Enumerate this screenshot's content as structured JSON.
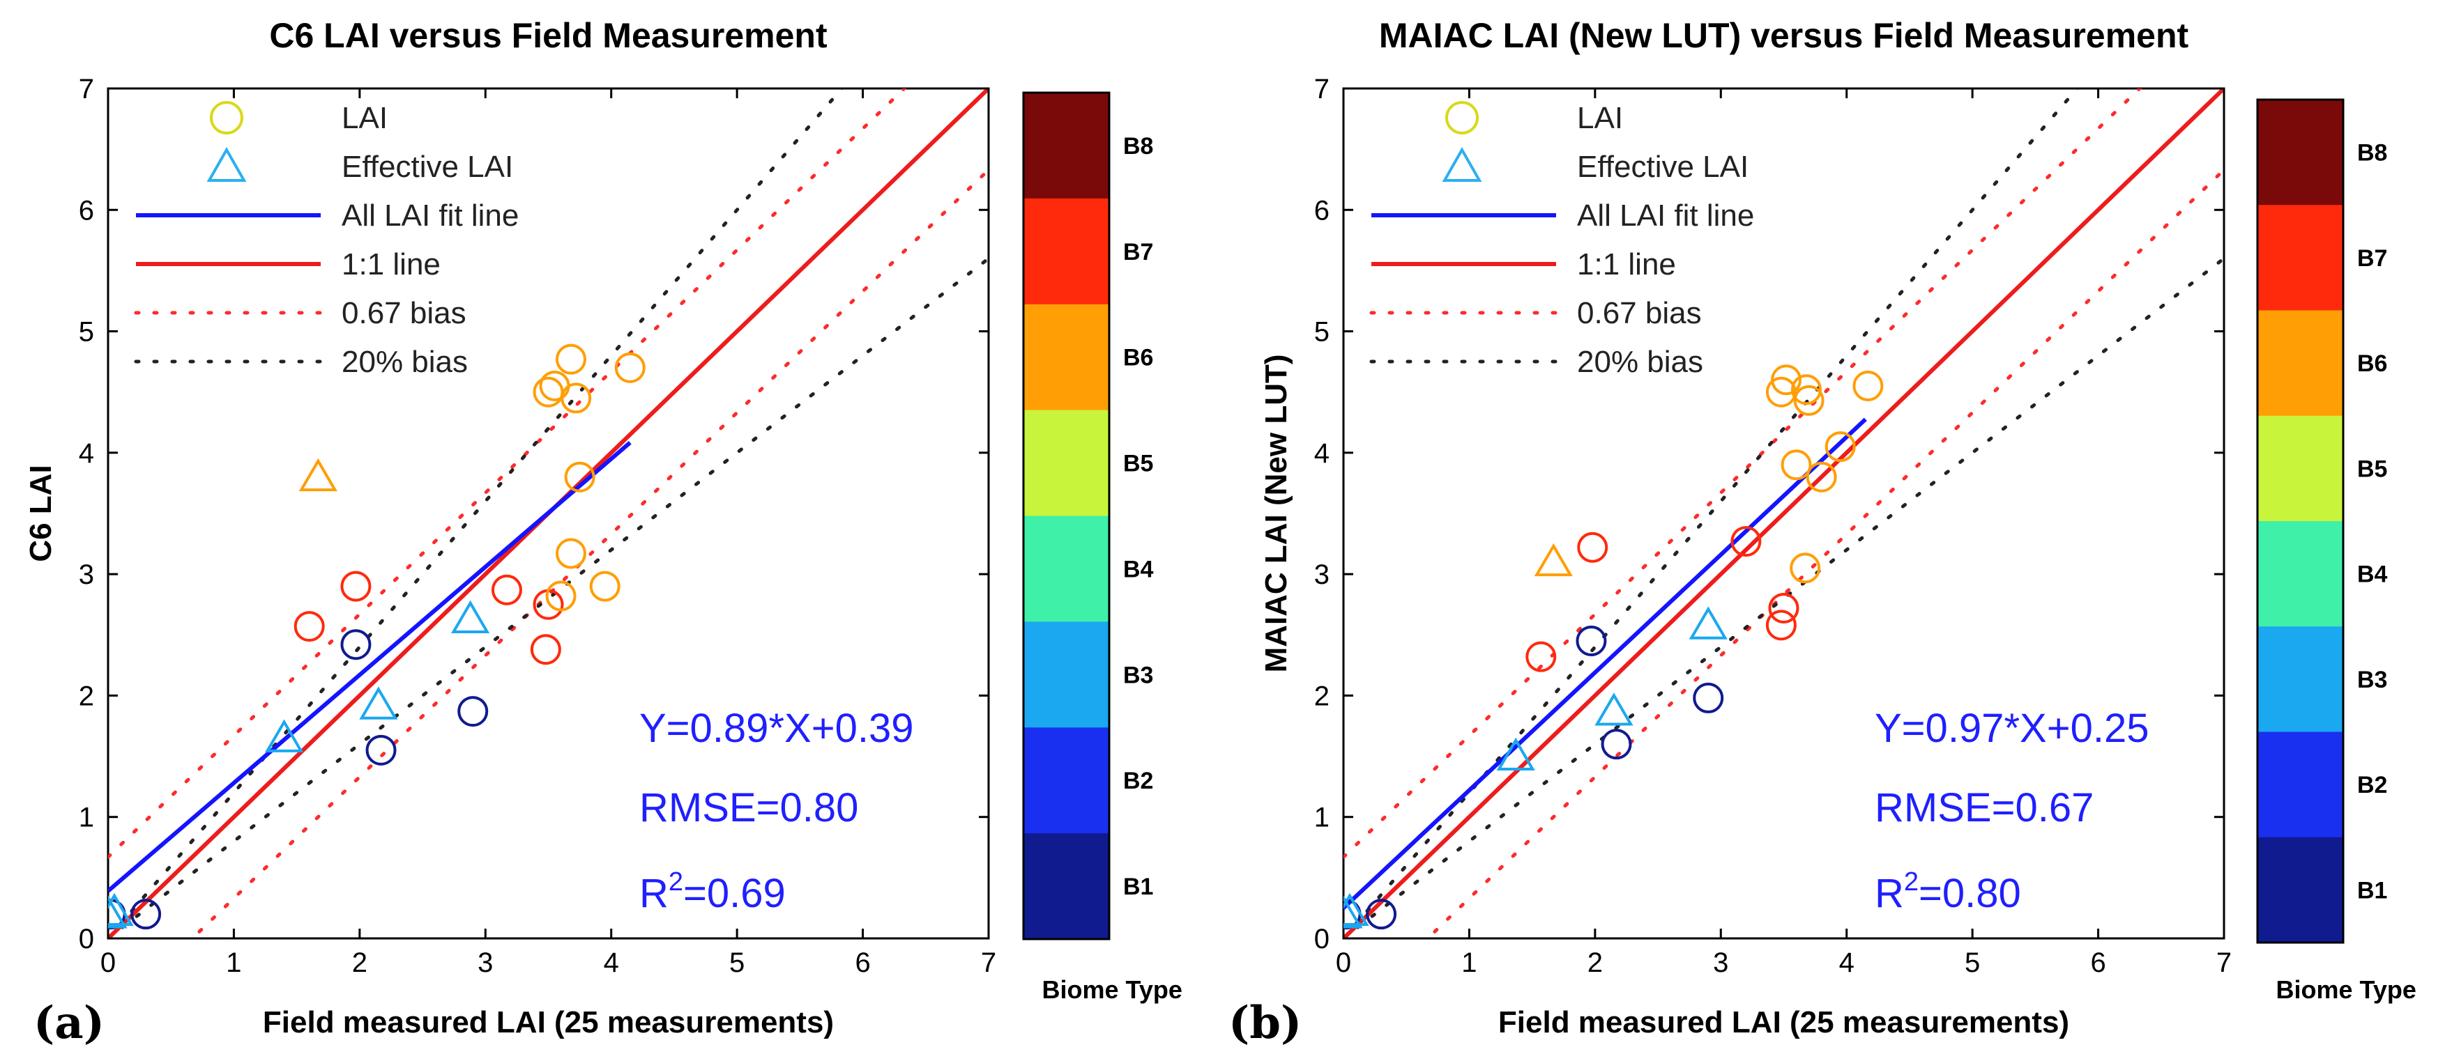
{
  "chart_data": [
    {
      "type": "scatter",
      "panel_label": "(a)",
      "title": "C6 LAI versus Field Measurement",
      "xlabel": "Field measured LAI (25 measurements)",
      "ylabel": "C6 LAI",
      "xlim": [
        0,
        7
      ],
      "ylim": [
        0,
        7
      ],
      "xticks": [
        "0",
        "1",
        "2",
        "3",
        "4",
        "5",
        "6",
        "7"
      ],
      "yticks": [
        "0",
        "1",
        "2",
        "3",
        "4",
        "5",
        "6",
        "7"
      ],
      "legend": {
        "position": "top-left",
        "entries": [
          "LAI",
          "Effective LAI",
          "All LAI fit line",
          "1:1 line",
          "0.67 bias",
          "20% bias"
        ]
      },
      "fit_line": {
        "slope": 0.89,
        "intercept": 0.39,
        "x_range": [
          0,
          4.15
        ]
      },
      "bias_abs": 0.67,
      "bias_pct": 0.2,
      "stats": {
        "equation": "Y=0.89*X+0.39",
        "rmse": "RMSE=0.80",
        "r2_prefix": "R",
        "r2_sup": "2",
        "r2_value": "=0.69"
      },
      "points": [
        {
          "x": 0.02,
          "y": 0.2,
          "marker": "circle",
          "biome": "B1"
        },
        {
          "x": 0.3,
          "y": 0.2,
          "marker": "circle",
          "biome": "B1"
        },
        {
          "x": 1.97,
          "y": 2.42,
          "marker": "circle",
          "biome": "B1"
        },
        {
          "x": 2.17,
          "y": 1.55,
          "marker": "circle",
          "biome": "B1"
        },
        {
          "x": 2.9,
          "y": 1.87,
          "marker": "circle",
          "biome": "B1"
        },
        {
          "x": 1.6,
          "y": 2.57,
          "marker": "circle",
          "biome": "B7"
        },
        {
          "x": 1.97,
          "y": 2.9,
          "marker": "circle",
          "biome": "B7"
        },
        {
          "x": 3.17,
          "y": 2.87,
          "marker": "circle",
          "biome": "B7"
        },
        {
          "x": 3.5,
          "y": 2.75,
          "marker": "circle",
          "biome": "B7"
        },
        {
          "x": 3.48,
          "y": 2.38,
          "marker": "circle",
          "biome": "B7"
        },
        {
          "x": 3.5,
          "y": 4.5,
          "marker": "circle",
          "biome": "B6"
        },
        {
          "x": 3.55,
          "y": 4.55,
          "marker": "circle",
          "biome": "B6"
        },
        {
          "x": 3.68,
          "y": 4.77,
          "marker": "circle",
          "biome": "B6"
        },
        {
          "x": 3.72,
          "y": 4.45,
          "marker": "circle",
          "biome": "B6"
        },
        {
          "x": 4.15,
          "y": 4.7,
          "marker": "circle",
          "biome": "B6"
        },
        {
          "x": 3.75,
          "y": 3.8,
          "marker": "circle",
          "biome": "B6"
        },
        {
          "x": 3.68,
          "y": 3.17,
          "marker": "circle",
          "biome": "B6"
        },
        {
          "x": 3.6,
          "y": 2.82,
          "marker": "circle",
          "biome": "B6"
        },
        {
          "x": 3.95,
          "y": 2.9,
          "marker": "circle",
          "biome": "B6"
        },
        {
          "x": 1.67,
          "y": 3.8,
          "marker": "triangle",
          "biome": "B6"
        },
        {
          "x": 0.0,
          "y": 0.2,
          "marker": "triangle",
          "biome": "B3"
        },
        {
          "x": 0.05,
          "y": 0.22,
          "marker": "triangle",
          "biome": "B3"
        },
        {
          "x": 1.4,
          "y": 1.65,
          "marker": "triangle",
          "biome": "B3"
        },
        {
          "x": 2.15,
          "y": 1.92,
          "marker": "triangle",
          "biome": "B3"
        },
        {
          "x": 2.88,
          "y": 2.63,
          "marker": "triangle",
          "biome": "B3"
        }
      ]
    },
    {
      "type": "scatter",
      "panel_label": "(b)",
      "title": "MAIAC LAI (New LUT) versus Field Measurement",
      "xlabel": "Field measured LAI (25 measurements)",
      "ylabel": "MAIAC LAI (New LUT)",
      "xlim": [
        0,
        7
      ],
      "ylim": [
        0,
        7
      ],
      "xticks": [
        "0",
        "1",
        "2",
        "3",
        "4",
        "5",
        "6",
        "7"
      ],
      "yticks": [
        "0",
        "1",
        "2",
        "3",
        "4",
        "5",
        "6",
        "7"
      ],
      "legend": {
        "position": "top-left",
        "entries": [
          "LAI",
          "Effective LAI",
          "All LAI fit line",
          "1:1 line",
          "0.67 bias",
          "20% bias"
        ]
      },
      "fit_line": {
        "slope": 0.97,
        "intercept": 0.25,
        "x_range": [
          0,
          4.15
        ]
      },
      "bias_abs": 0.67,
      "bias_pct": 0.2,
      "stats": {
        "equation": "Y=0.97*X+0.25",
        "rmse": "RMSE=0.67",
        "r2_prefix": "R",
        "r2_sup": "2",
        "r2_value": "=0.80"
      },
      "points": [
        {
          "x": 0.02,
          "y": 0.2,
          "marker": "circle",
          "biome": "B1"
        },
        {
          "x": 0.3,
          "y": 0.2,
          "marker": "circle",
          "biome": "B1"
        },
        {
          "x": 1.97,
          "y": 2.45,
          "marker": "circle",
          "biome": "B1"
        },
        {
          "x": 2.17,
          "y": 1.6,
          "marker": "circle",
          "biome": "B1"
        },
        {
          "x": 2.9,
          "y": 1.98,
          "marker": "circle",
          "biome": "B1"
        },
        {
          "x": 1.57,
          "y": 2.32,
          "marker": "circle",
          "biome": "B7"
        },
        {
          "x": 1.98,
          "y": 3.22,
          "marker": "circle",
          "biome": "B7"
        },
        {
          "x": 3.2,
          "y": 3.27,
          "marker": "circle",
          "biome": "B7"
        },
        {
          "x": 3.5,
          "y": 2.72,
          "marker": "circle",
          "biome": "B7"
        },
        {
          "x": 3.48,
          "y": 2.58,
          "marker": "circle",
          "biome": "B7"
        },
        {
          "x": 3.48,
          "y": 4.5,
          "marker": "circle",
          "biome": "B6"
        },
        {
          "x": 3.52,
          "y": 4.6,
          "marker": "circle",
          "biome": "B6"
        },
        {
          "x": 3.68,
          "y": 4.52,
          "marker": "circle",
          "biome": "B6"
        },
        {
          "x": 3.7,
          "y": 4.43,
          "marker": "circle",
          "biome": "B6"
        },
        {
          "x": 4.17,
          "y": 4.55,
          "marker": "circle",
          "biome": "B6"
        },
        {
          "x": 3.6,
          "y": 3.9,
          "marker": "circle",
          "biome": "B6"
        },
        {
          "x": 3.95,
          "y": 4.05,
          "marker": "circle",
          "biome": "B6"
        },
        {
          "x": 3.8,
          "y": 3.8,
          "marker": "circle",
          "biome": "B6"
        },
        {
          "x": 3.67,
          "y": 3.05,
          "marker": "circle",
          "biome": "B6"
        },
        {
          "x": 1.67,
          "y": 3.1,
          "marker": "triangle",
          "biome": "B6"
        },
        {
          "x": 0.0,
          "y": 0.2,
          "marker": "triangle",
          "biome": "B3"
        },
        {
          "x": 0.05,
          "y": 0.22,
          "marker": "triangle",
          "biome": "B3"
        },
        {
          "x": 1.37,
          "y": 1.5,
          "marker": "triangle",
          "biome": "B3"
        },
        {
          "x": 2.15,
          "y": 1.87,
          "marker": "triangle",
          "biome": "B3"
        },
        {
          "x": 2.9,
          "y": 2.58,
          "marker": "triangle",
          "biome": "B3"
        }
      ]
    }
  ],
  "colorbar": {
    "title": "Biome Type",
    "labels": [
      "B8",
      "B7",
      "B6",
      "B5",
      "B4",
      "B3",
      "B2",
      "B1"
    ],
    "colors": {
      "B1": "#101b8f",
      "B2": "#1a30f0",
      "B3": "#1aa8f0",
      "B4": "#3ff0a8",
      "B5": "#c8f53c",
      "B6": "#ff9e05",
      "B7": "#ff2a0c",
      "B8": "#7a0a0a"
    }
  },
  "styles": {
    "fit_color": "#1414ff",
    "one_to_one_color": "#ee1c1c",
    "bias067_color": "#ff2a2a",
    "bias20_color": "#222222",
    "stat_color": "#1f1fff",
    "legend_lai_color": "#d9d91a",
    "legend_eff_color": "#2ab0f0"
  }
}
